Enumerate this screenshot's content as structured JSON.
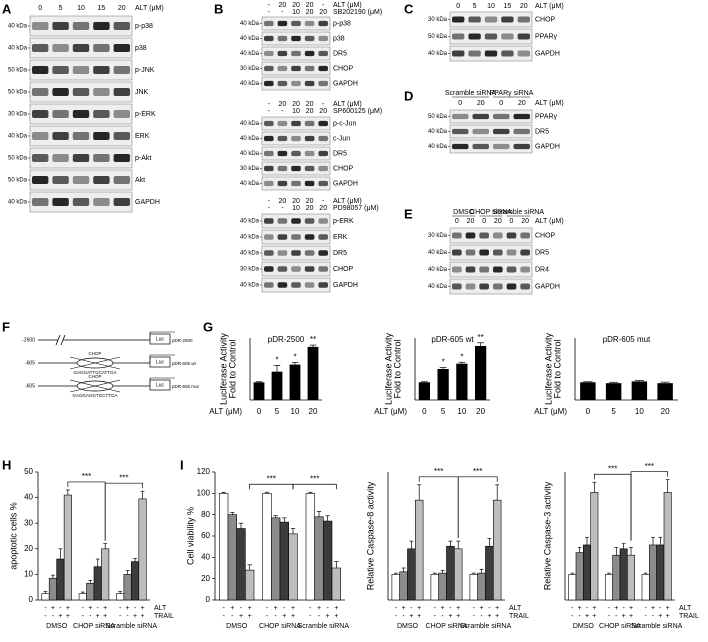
{
  "figure": {
    "reporter": "Luc",
    "blots": [
      {
        "label": "A",
        "headers": [
          {
            "cells": [
              "0",
              "5",
              "10",
              "15",
              "20"
            ],
            "unit": "ALT (μM)"
          }
        ],
        "rows": [
          {
            "kda": "40 kDa",
            "protein": "p-p38"
          },
          {
            "kda": "40 kDa",
            "protein": "p38"
          },
          {
            "kda": "50 kDa",
            "protein": "p-JNK"
          },
          {
            "kda": "50 kDa",
            "protein": "JNK"
          },
          {
            "kda": "30 kDa",
            "protein": "p-ERK"
          },
          {
            "kda": "40 kDa",
            "protein": "ERK"
          },
          {
            "kda": "50 kDa",
            "protein": "p-Akt"
          },
          {
            "kda": "50 kDa",
            "protein": "Akt"
          },
          {
            "kda": "40 kDa",
            "protein": "GAPDH"
          }
        ]
      },
      {
        "label": "B",
        "headers": [
          {
            "cells": [
              "-",
              "20",
              "20",
              "20",
              "-"
            ],
            "unit": "ALT (μM)"
          },
          {
            "cells": [
              "-",
              "-",
              "10",
              "20",
              "20"
            ],
            "unit": "SB202190 (μM)"
          }
        ],
        "rows": [
          {
            "kda": "40 kDa",
            "protein": "p-p38"
          },
          {
            "kda": "40 kDa",
            "protein": "p38"
          },
          {
            "kda": "40 kDa",
            "protein": "DR5"
          },
          {
            "kda": "30 kDa",
            "protein": "CHOP"
          },
          {
            "kda": "40 kDa",
            "protein": "GAPDH"
          }
        ]
      },
      {
        "headers": [
          {
            "cells": [
              "-",
              "20",
              "20",
              "20",
              "-"
            ],
            "unit": "ALT (μM)"
          },
          {
            "cells": [
              "-",
              "-",
              "10",
              "20",
              "20"
            ],
            "unit": "SP600125 (μM)"
          }
        ],
        "rows": [
          {
            "kda": "40 kDa",
            "protein": "p-c-Jun"
          },
          {
            "kda": "40 kDa",
            "protein": "c-Jun"
          },
          {
            "kda": "40 kDa",
            "protein": "DR5"
          },
          {
            "kda": "30 kDa",
            "protein": "CHOP"
          },
          {
            "kda": "40 kDa",
            "protein": "GAPDH"
          }
        ]
      },
      {
        "headers": [
          {
            "cells": [
              "-",
              "20",
              "20",
              "20",
              "-"
            ],
            "unit": "ALT (μM)"
          },
          {
            "cells": [
              "-",
              "-",
              "10",
              "20",
              "20"
            ],
            "unit": "PD98057 (μM)"
          }
        ],
        "rows": [
          {
            "kda": "40 kDa",
            "protein": "p-ERK"
          },
          {
            "kda": "40 kDa",
            "protein": "ERK"
          },
          {
            "kda": "40 kDa",
            "protein": "DR5"
          },
          {
            "kda": "30 kDa",
            "protein": "CHOP"
          },
          {
            "kda": "40 kDa",
            "protein": "GAPDH"
          }
        ]
      },
      {
        "label": "C",
        "headers": [
          {
            "cells": [
              "0",
              "5",
              "10",
              "15",
              "20"
            ],
            "unit": "ALT (μM)"
          }
        ],
        "rows": [
          {
            "kda": "30 kDa",
            "protein": "CHOP"
          },
          {
            "kda": "50 kDa",
            "protein": "PPARγ"
          },
          {
            "kda": "40 kDa",
            "protein": "GAPDH"
          }
        ]
      },
      {
        "label": "D",
        "groups": [
          "Scramble siRNA",
          "PPARγ siRNA"
        ],
        "headers": [
          {
            "cells": [
              "0",
              "20",
              "0",
              "20"
            ],
            "unit": "ALT (μM)"
          }
        ],
        "rows": [
          {
            "kda": "50 kDa",
            "protein": "PPARγ"
          },
          {
            "kda": "40 kDa",
            "protein": "DR5"
          },
          {
            "kda": "40 kDa",
            "protein": "GAPDH"
          }
        ]
      },
      {
        "label": "E",
        "groups": [
          "DMSO",
          "CHOP siRNA",
          "Scramble siRNA"
        ],
        "headers": [
          {
            "cells": [
              "0",
              "20",
              "0",
              "20",
              "0",
              "20"
            ],
            "unit": "ALT (μM)"
          }
        ],
        "rows": [
          {
            "kda": "30 kDa",
            "protein": "CHOP"
          },
          {
            "kda": "40 kDa",
            "protein": "DR5"
          },
          {
            "kda": "40 kDa",
            "protein": "DR4"
          },
          {
            "kda": "40 kDa",
            "protein": "GAPDH"
          }
        ]
      }
    ],
    "constructs": {
      "label": "F",
      "items": [
        {
          "position": "-2500",
          "name": "pDR-2500"
        },
        {
          "position": "-605",
          "name": "pDR-605 wt",
          "site": "CHOP",
          "sequence": "GAGGATTGCATTGA"
        },
        {
          "position": "-605",
          "name": "pDR-605 mut",
          "site": "CHOP",
          "sequence": "GAGGAGGTGCTTGA"
        }
      ]
    }
  },
  "chart_data": [
    {
      "type": "bar",
      "label": "G",
      "title": "pDR-2500",
      "ylabel": [
        "Luciferase Activity",
        "Fold to Control"
      ],
      "xlabel": "ALT (μM)",
      "categories": [
        "0",
        "5",
        "10",
        "20"
      ],
      "values": [
        1,
        1.6,
        2.0,
        3.0
      ],
      "errors": [
        0.03,
        0.35,
        0.12,
        0.1
      ],
      "significance": [
        null,
        "*",
        "*",
        "**"
      ],
      "color": "#000000",
      "ylim": [
        0,
        3.5
      ]
    },
    {
      "type": "bar",
      "title": "pDR-605 wt",
      "ylabel": [
        "Luciferase Activity",
        "Fold to Control"
      ],
      "xlabel": "ALT (μM)",
      "categories": [
        "0",
        "5",
        "10",
        "20"
      ],
      "values": [
        1,
        1.75,
        2.05,
        3.05
      ],
      "errors": [
        0.03,
        0.08,
        0.08,
        0.18
      ],
      "significance": [
        null,
        "*",
        "*",
        "**"
      ],
      "color": "#000000",
      "ylim": [
        0,
        3.5
      ]
    },
    {
      "type": "bar",
      "title": "pDR-605 mut",
      "ylabel": [
        "Luciferase Activity",
        "Fold to Control"
      ],
      "xlabel": "ALT (μM)",
      "categories": [
        "0",
        "5",
        "10",
        "20"
      ],
      "values": [
        1,
        0.95,
        1.05,
        0.95
      ],
      "errors": [
        0.03,
        0.05,
        0.05,
        0.06
      ],
      "color": "#000000",
      "ylim": [
        0,
        3.5
      ]
    },
    {
      "type": "grouped_bar",
      "label": "H",
      "ylabel": "apoptotic cells %",
      "categories": [
        "DMSO",
        "CHOP siRNA",
        "Scramble siRNA"
      ],
      "series": [
        {
          "color": "#ffffff",
          "values": [
            2.5,
            2.5,
            2.5
          ],
          "errors": [
            0.8,
            0.6,
            0.8
          ]
        },
        {
          "color": "#8c8c8c",
          "values": [
            8.5,
            6.5,
            10
          ],
          "errors": [
            1.2,
            1.2,
            1.5
          ]
        },
        {
          "color": "#3c3c3c",
          "values": [
            16,
            13,
            15
          ],
          "errors": [
            4,
            3,
            1.2
          ]
        },
        {
          "color": "#bdbdbd",
          "values": [
            41,
            20,
            39.5
          ],
          "errors": [
            2,
            2,
            3
          ]
        }
      ],
      "treatments": [
        {
          "name": "ALT",
          "signs": [
            "-",
            "+",
            "-",
            "+"
          ]
        },
        {
          "name": "TRAIL",
          "signs": [
            "-",
            "-",
            "+",
            "+"
          ]
        }
      ],
      "significance": [
        "***",
        "***"
      ],
      "ylim": [
        0,
        50
      ],
      "yticks": [
        0,
        10,
        20,
        30,
        40,
        50
      ]
    },
    {
      "type": "grouped_bar",
      "label": "I",
      "ylabel": "Cell viability %",
      "categories": [
        "DMSO",
        "CHOP siRNA",
        "Scramble siRNA"
      ],
      "series": [
        {
          "color": "#ffffff",
          "values": [
            100,
            100,
            100
          ],
          "errors": [
            1,
            1,
            1
          ]
        },
        {
          "color": "#8c8c8c",
          "values": [
            80,
            77,
            78
          ],
          "errors": [
            2,
            2,
            5
          ]
        },
        {
          "color": "#3c3c3c",
          "values": [
            67,
            73,
            74
          ],
          "errors": [
            5,
            4,
            5
          ]
        },
        {
          "color": "#bdbdbd",
          "values": [
            28,
            62,
            30
          ],
          "errors": [
            5,
            5,
            6
          ]
        }
      ],
      "treatments": [
        {
          "signs": [
            "-",
            "+",
            "-",
            "+"
          ]
        },
        {
          "signs": [
            "-",
            "-",
            "+",
            "+"
          ]
        }
      ],
      "significance": [
        "***",
        "***"
      ],
      "ylim": [
        0,
        120
      ],
      "yticks": [
        0,
        20,
        40,
        60,
        80,
        100,
        120
      ]
    },
    {
      "type": "grouped_bar",
      "ylabel": "Relative Caspase-8 activity",
      "categories": [
        "DMSO",
        "CHOP siRNA",
        "Scramble siRNA"
      ],
      "series": [
        {
          "color": "#ffffff",
          "values": [
            1,
            1,
            1
          ],
          "errors": [
            0.05,
            0.05,
            0.05
          ]
        },
        {
          "color": "#8c8c8c",
          "values": [
            1.1,
            1.05,
            1.05
          ],
          "errors": [
            0.15,
            0.1,
            0.15
          ]
        },
        {
          "color": "#3c3c3c",
          "values": [
            2.0,
            2.1,
            2.1
          ],
          "errors": [
            0.3,
            0.2,
            0.3
          ]
        },
        {
          "color": "#bdbdbd",
          "values": [
            3.9,
            2.0,
            3.9
          ],
          "errors": [
            0.6,
            0.3,
            0.6
          ]
        }
      ],
      "treatments": [
        {
          "name": "ALT",
          "signs": [
            "-",
            "+",
            "-",
            "+"
          ]
        },
        {
          "name": "TRAIL",
          "signs": [
            "-",
            "-",
            "+",
            "+"
          ]
        }
      ],
      "significance": [
        "***",
        "***"
      ],
      "ylim": [
        0,
        5
      ]
    },
    {
      "type": "grouped_bar",
      "ylabel": "Relative Caspase-3 activity",
      "categories": [
        "DMSO",
        "CHOP siRNA",
        "Scramble siRNA"
      ],
      "series": [
        {
          "color": "#ffffff",
          "values": [
            1,
            1,
            1
          ],
          "errors": [
            0.05,
            0.05,
            0.05
          ]
        },
        {
          "color": "#8c8c8c",
          "values": [
            1.85,
            1.75,
            2.15
          ],
          "errors": [
            0.2,
            0.3,
            0.3
          ]
        },
        {
          "color": "#3c3c3c",
          "values": [
            2.15,
            2.0,
            2.15
          ],
          "errors": [
            0.3,
            0.2,
            0.3
          ]
        },
        {
          "color": "#bdbdbd",
          "values": [
            4.2,
            1.75,
            4.2
          ],
          "errors": [
            0.4,
            0.3,
            0.5
          ]
        }
      ],
      "treatments": [
        {
          "name": "ALT",
          "signs": [
            "-",
            "+",
            "-",
            "+"
          ]
        },
        {
          "name": "TRAIL",
          "signs": [
            "-",
            "-",
            "+",
            "+"
          ]
        }
      ],
      "significance": [
        "***",
        "***"
      ],
      "ylim": [
        0,
        5
      ]
    }
  ]
}
